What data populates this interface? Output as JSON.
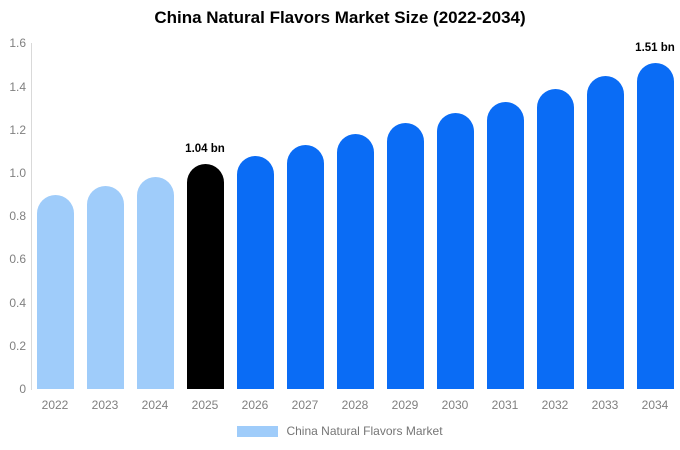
{
  "title": "China Natural Flavors Market Size (2022-2034)",
  "colors": {
    "past": "#9fccfa",
    "highlight": "#000000",
    "forecast": "#0a6cf5",
    "axis_text": "#808080",
    "axis_line": "#d9d9d9",
    "legend_text": "#757575",
    "annotation_text": "#000000",
    "background": "#ffffff"
  },
  "legend": {
    "label": "China Natural Flavors Market",
    "swatch_color": "#9fccfa"
  },
  "chart_data": {
    "type": "bar",
    "title": "China Natural Flavors Market Size (2022-2034)",
    "categories": [
      "2022",
      "2023",
      "2024",
      "2025",
      "2026",
      "2027",
      "2028",
      "2029",
      "2030",
      "2031",
      "2032",
      "2033",
      "2034"
    ],
    "values": [
      0.9,
      0.94,
      0.98,
      1.04,
      1.08,
      1.13,
      1.18,
      1.23,
      1.28,
      1.33,
      1.39,
      1.45,
      1.51
    ],
    "unit": "bn",
    "bar_color_keys": [
      "past",
      "past",
      "past",
      "highlight",
      "forecast",
      "forecast",
      "forecast",
      "forecast",
      "forecast",
      "forecast",
      "forecast",
      "forecast",
      "forecast"
    ],
    "xlabel": "",
    "ylabel": "",
    "ylim": [
      0,
      1.6
    ],
    "y_ticks": [
      "0",
      "0.2",
      "0.4",
      "0.6",
      "0.8",
      "1.0",
      "1.2",
      "1.4",
      "1.6"
    ],
    "grid": false,
    "legend_position": "bottom-center",
    "annotations": [
      {
        "category": "2025",
        "text": "1.04 bn"
      },
      {
        "category": "2034",
        "text": "1.51 bn"
      }
    ]
  }
}
